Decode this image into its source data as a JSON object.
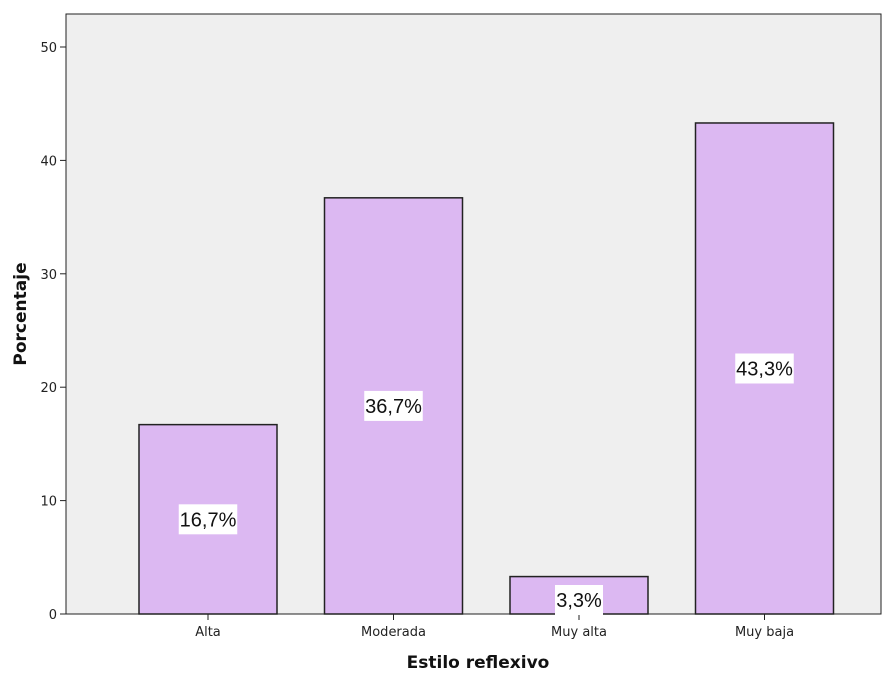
{
  "chart_data": {
    "type": "bar",
    "categories": [
      "Alta",
      "Moderada",
      "Muy alta",
      "Muy baja"
    ],
    "values": [
      16.7,
      36.7,
      3.3,
      43.3
    ],
    "data_labels": [
      "16,7%",
      "36,7%",
      "3,3%",
      "43,3%"
    ],
    "xlabel": "Estilo reflexivo",
    "ylabel": "Porcentaje",
    "ylim": [
      0,
      50
    ],
    "yticks": [
      0,
      10,
      20,
      30,
      40,
      50
    ],
    "grid": false,
    "colors": {
      "bar_fill": "#dcb8f2",
      "bar_stroke": "#222222",
      "plot_background": "#efefef",
      "label_box": "#ffffff"
    }
  }
}
